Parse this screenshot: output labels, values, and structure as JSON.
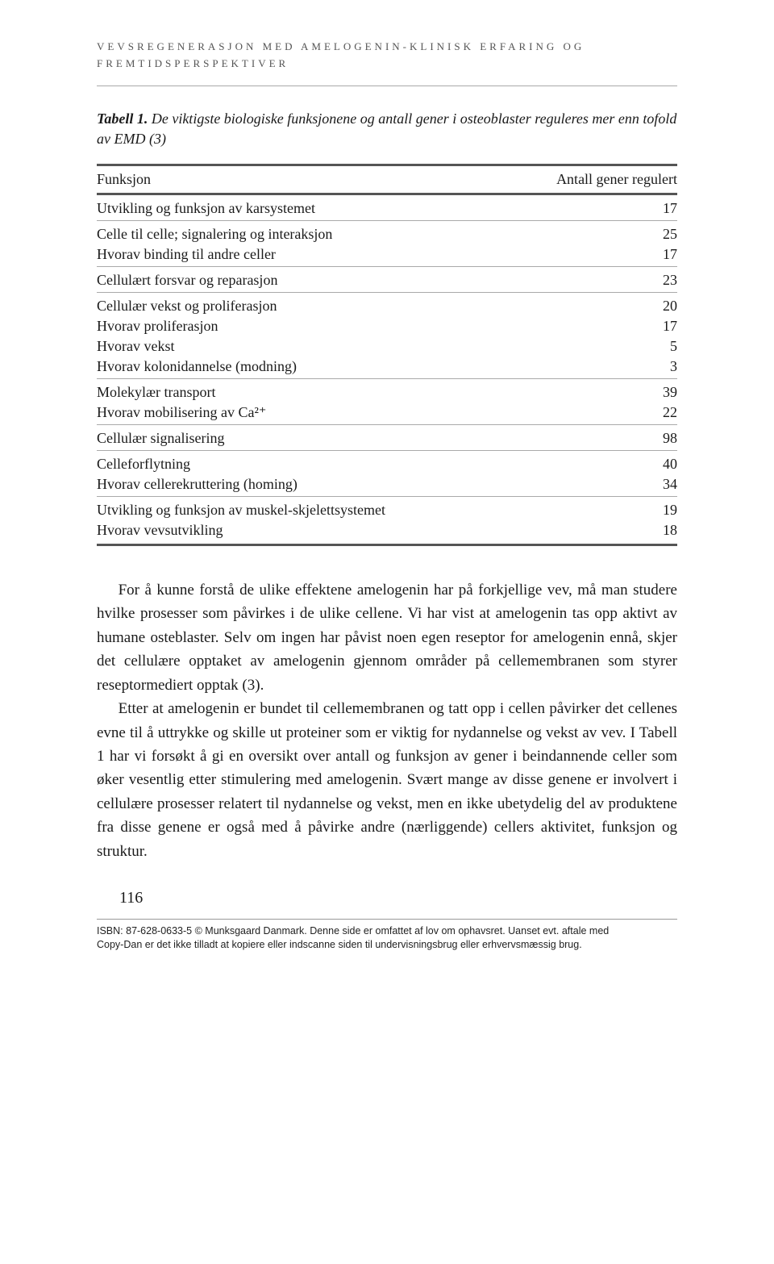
{
  "running_head": "VEVSREGENERASJON MED AMELOGENIN-KLINISK ERFARING OG FREMTIDSPERSPEKTIVER",
  "table": {
    "caption_label": "Tabell 1.",
    "caption_text": " De viktigste biologiske funksjonene og antall gener i osteoblaster reguleres mer enn tofold av EMD (3)",
    "head_col1": "Funksjon",
    "head_col2": "Antall gener regulert",
    "rows": [
      {
        "label": "Utvikling og funksjon av karsystemet",
        "value": "17",
        "top": true,
        "bottom": true
      },
      {
        "label": "Celle til celle; signalering og interaksjon",
        "value": "25",
        "top": true
      },
      {
        "label": "Hvorav binding til andre celler",
        "value": "17",
        "bottom": true
      },
      {
        "label": "Cellulært forsvar og reparasjon",
        "value": "23",
        "top": true,
        "bottom": true
      },
      {
        "label": "Cellulær vekst og proliferasjon",
        "value": "20",
        "top": true
      },
      {
        "label": "Hvorav proliferasjon",
        "value": "17"
      },
      {
        "label": "Hvorav vekst",
        "value": "5"
      },
      {
        "label": "Hvorav kolonidannelse (modning)",
        "value": "3",
        "bottom": true
      },
      {
        "label": "Molekylær transport",
        "value": "39",
        "top": true
      },
      {
        "label": "Hvorav mobilisering av Ca²⁺",
        "value": "22",
        "bottom": true
      },
      {
        "label": "Cellulær signalisering",
        "value": "98",
        "top": true,
        "bottom": true
      },
      {
        "label": "Celleforflytning",
        "value": "40",
        "top": true
      },
      {
        "label": "Hvorav cellerekruttering (homing)",
        "value": "34",
        "bottom": true
      },
      {
        "label": "Utvikling og funksjon av muskel-skjelettsystemet",
        "value": "19",
        "top": true
      },
      {
        "label": "Hvorav vevsutvikling",
        "value": "18",
        "last": true
      }
    ]
  },
  "paragraphs": [
    "For å kunne forstå de ulike effektene amelogenin har på forkjellige vev, må man studere hvilke prosesser som påvirkes i de ulike cellene. Vi har vist at amelogenin tas opp aktivt av humane osteblaster. Selv om ingen har påvist noen egen reseptor for amelogenin ennå, skjer det cellulære opptaket av amelogenin gjennom områder på cellemembranen som styrer reseptormediert opptak (3).",
    "Etter at amelogenin er bundet til cellemembranen og tatt opp i cellen påvirker det cellenes evne til å uttrykke og skille ut proteiner som er viktig for nydannelse og vekst av vev. I Tabell 1 har vi forsøkt å gi en oversikt over antall og funksjon av gener i beindannende celler som øker vesentlig etter stimulering med amelogenin. Svært mange av disse genene er involvert i cellulære prosesser relatert til nydannelse og vekst, men en ikke ubetydelig del av produktene fra disse genene er også med å påvirke andre (nærliggende) cellers aktivitet, funksjon og struktur."
  ],
  "page_number": "116",
  "isbn_line1": "ISBN: 87-628-0633-5 © Munksgaard Danmark. Denne side er omfattet af lov om ophavsret. Uanset evt. aftale med",
  "isbn_line2": "Copy-Dan er det ikke tilladt at kopiere eller indscanne siden til undervisningsbrug eller erhvervsmæssig brug."
}
